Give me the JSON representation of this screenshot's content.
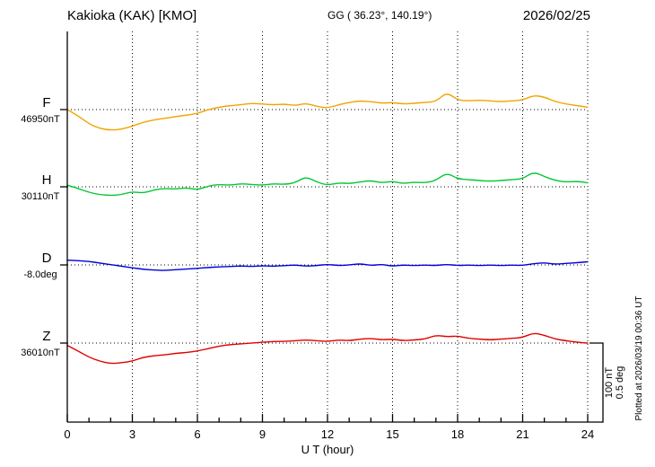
{
  "header": {
    "station": "Kakioka (KAK)  [KMO]",
    "coordinates": "GG ( 36.23°, 140.19°)",
    "date": "2026/02/25"
  },
  "footer": {
    "plotted_at": "Plotted at 2026/03/19 00:36 UT"
  },
  "scale_bar": {
    "nt_label": "100 nT",
    "deg_label": "0.5 deg"
  },
  "x_axis": {
    "label": "U T (hour)",
    "ticks": [
      0,
      3,
      6,
      9,
      12,
      15,
      18,
      21,
      24
    ]
  },
  "chart_data": {
    "type": "line",
    "title": "Kakioka (KAK) [KMO] magnetogram 2026/02/25",
    "x_unit": "hour",
    "x_range": [
      0,
      24
    ],
    "sample_step_hours": 0.5,
    "grid": "dotted-vertical-every-3h",
    "scale": {
      "nT_per_bar": 100,
      "deg_per_bar": 0.5
    },
    "series": [
      {
        "name": "F",
        "unit": "nT",
        "baseline_label": "46950nT",
        "baseline_value": 46950,
        "color": "#f0a500",
        "offsets": [
          0,
          -8,
          -18,
          -24,
          -26,
          -25,
          -21,
          -16,
          -13,
          -11,
          -9,
          -7,
          -5,
          0,
          3,
          5,
          6,
          8,
          7,
          6,
          7,
          5,
          8,
          4,
          2,
          6,
          9,
          11,
          10,
          8,
          9,
          7,
          8,
          9,
          10,
          22,
          12,
          11,
          12,
          11,
          10,
          11,
          12,
          18,
          16,
          10,
          7,
          5,
          3
        ]
      },
      {
        "name": "H",
        "unit": "nT",
        "baseline_label": "30110nT",
        "baseline_value": 30110,
        "color": "#00c832",
        "offsets": [
          2,
          -2,
          -7,
          -10,
          -11,
          -10,
          -6,
          -8,
          -4,
          -2,
          -3,
          -1,
          -4,
          1,
          3,
          2,
          4,
          3,
          2,
          4,
          3,
          5,
          13,
          6,
          2,
          5,
          4,
          6,
          8,
          5,
          7,
          4,
          6,
          5,
          8,
          18,
          10,
          9,
          8,
          7,
          8,
          9,
          10,
          19,
          13,
          8,
          6,
          7,
          5
        ]
      },
      {
        "name": "D",
        "unit": "deg",
        "baseline_label": "-8.0deg",
        "baseline_value": -8.0,
        "color": "#0000dd",
        "offsets": [
          0.03,
          0.027,
          0.022,
          0.012,
          0.002,
          -0.008,
          -0.018,
          -0.028,
          -0.032,
          -0.035,
          -0.03,
          -0.026,
          -0.022,
          -0.016,
          -0.012,
          -0.01,
          -0.006,
          -0.01,
          -0.005,
          -0.009,
          -0.004,
          0,
          -0.008,
          -0.004,
          0.004,
          -0.004,
          0,
          0.008,
          -0.004,
          0.004,
          -0.008,
          0,
          -0.004,
          0,
          -0.004,
          0.004,
          -0.004,
          0,
          -0.004,
          0,
          -0.004,
          0,
          -0.004,
          0.008,
          0.014,
          0.004,
          0.01,
          0.014,
          0.02
        ]
      },
      {
        "name": "Z",
        "unit": "nT",
        "baseline_label": "36010nT",
        "baseline_value": 36010,
        "color": "#e10000",
        "offsets": [
          -3,
          -10,
          -18,
          -23,
          -26,
          -25,
          -23,
          -18,
          -16,
          -15,
          -13,
          -12,
          -10,
          -7,
          -4,
          -2,
          -1,
          0,
          1,
          2,
          2,
          3,
          4,
          3,
          2,
          4,
          3,
          5,
          6,
          4,
          5,
          3,
          4,
          5,
          10,
          8,
          9,
          6,
          5,
          4,
          5,
          6,
          7,
          13,
          10,
          5,
          3,
          1,
          0
        ]
      }
    ]
  }
}
